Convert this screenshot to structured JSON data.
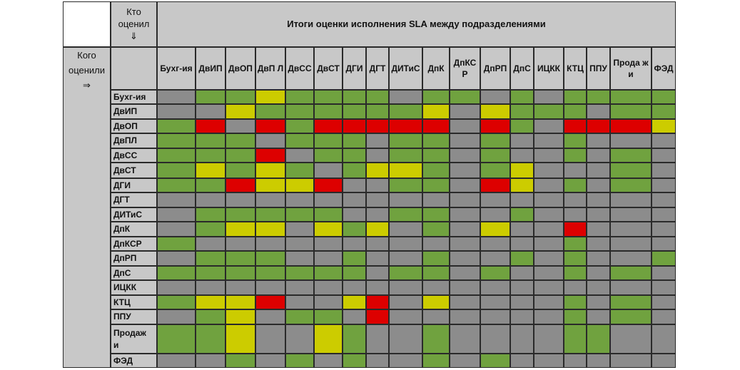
{
  "header": {
    "who_evaluated": "Кто оценил",
    "down_arrow": "⇓",
    "whom_evaluated": "Кого оценили",
    "right_arrow": "⇒",
    "title": "Итоги оценки исполнения SLA между подразделениями"
  },
  "colors": {
    "green": "#70a23f",
    "gray": "#8c8c8c",
    "yellow": "#cccc00",
    "red": "#dd0000",
    "header_bg": "#c8c8c8"
  },
  "chart_data": {
    "type": "heatmap",
    "title": "Итоги оценки исполнения SLA между подразделениями",
    "columns": [
      "Бухг-ия",
      "ДвИП",
      "ДвОП",
      "ДвПЛ",
      "ДвСС",
      "ДвСТ",
      "ДГИ",
      "ДГТ",
      "ДИТиС",
      "ДпК",
      "ДпКСР",
      "ДпРП",
      "ДпС",
      "ИЦКК",
      "КТЦ",
      "ППУ",
      "Продажи",
      "ФЭД"
    ],
    "column_labels": [
      "Бухг-ия",
      "ДвИП",
      "ДвОП",
      "ДвП Л",
      "ДвСС",
      "ДвСТ",
      "ДГИ",
      "ДГТ",
      "ДИТиС",
      "ДпК",
      "ДпКСР",
      "ДпРП",
      "ДпС",
      "ИЦКК",
      "КТЦ",
      "ППУ",
      "Прода жи",
      "ФЭД"
    ],
    "rows": [
      "Бухг-ия",
      "ДвИП",
      "ДвОП",
      "ДвПЛ",
      "ДвСС",
      "ДвСТ",
      "ДГИ",
      "ДГТ",
      "ДИТиС",
      "ДпК",
      "ДпКСР",
      "ДпРП",
      "ДпС",
      "ИЦКК",
      "КТЦ",
      "ППУ",
      "Продажи",
      "ФЭД"
    ],
    "row_labels": [
      "Бухг-ия",
      "ДвИП",
      "ДвОП",
      "ДвПЛ",
      "ДвСС",
      "ДвСТ",
      "ДГИ",
      "ДГТ",
      "ДИТиС",
      "ДпК",
      "ДпКСР",
      "ДпРП",
      "ДпС",
      "ИЦКК",
      "КТЦ",
      "ППУ",
      "Продаж и",
      "ФЭД"
    ],
    "values": [
      [
        "gray",
        "green",
        "green",
        "yellow",
        "green",
        "green",
        "green",
        "green",
        "gray",
        "green",
        "green",
        "gray",
        "green",
        "gray",
        "green",
        "green",
        "green",
        "green"
      ],
      [
        "gray",
        "gray",
        "yellow",
        "green",
        "green",
        "green",
        "green",
        "green",
        "green",
        "yellow",
        "gray",
        "yellow",
        "green",
        "green",
        "green",
        "gray",
        "green",
        "green"
      ],
      [
        "green",
        "red",
        "gray",
        "red",
        "green",
        "red",
        "red",
        "red",
        "red",
        "red",
        "gray",
        "red",
        "green",
        "gray",
        "red",
        "red",
        "red",
        "yellow"
      ],
      [
        "green",
        "green",
        "green",
        "gray",
        "green",
        "green",
        "green",
        "gray",
        "green",
        "green",
        "gray",
        "green",
        "gray",
        "gray",
        "green",
        "gray",
        "gray",
        "gray"
      ],
      [
        "green",
        "green",
        "green",
        "red",
        "gray",
        "green",
        "green",
        "gray",
        "green",
        "green",
        "gray",
        "green",
        "gray",
        "gray",
        "green",
        "gray",
        "green",
        "gray"
      ],
      [
        "green",
        "yellow",
        "green",
        "yellow",
        "green",
        "gray",
        "green",
        "yellow",
        "yellow",
        "green",
        "gray",
        "green",
        "yellow",
        "gray",
        "gray",
        "gray",
        "green",
        "gray"
      ],
      [
        "green",
        "green",
        "red",
        "yellow",
        "yellow",
        "red",
        "gray",
        "gray",
        "green",
        "green",
        "gray",
        "red",
        "yellow",
        "gray",
        "green",
        "gray",
        "green",
        "gray"
      ],
      [
        "gray",
        "gray",
        "gray",
        "gray",
        "gray",
        "gray",
        "gray",
        "gray",
        "gray",
        "gray",
        "gray",
        "gray",
        "gray",
        "gray",
        "gray",
        "gray",
        "gray",
        "gray"
      ],
      [
        "gray",
        "green",
        "green",
        "green",
        "green",
        "green",
        "gray",
        "gray",
        "green",
        "green",
        "gray",
        "gray",
        "green",
        "gray",
        "gray",
        "gray",
        "gray",
        "gray"
      ],
      [
        "gray",
        "green",
        "yellow",
        "yellow",
        "gray",
        "yellow",
        "green",
        "yellow",
        "gray",
        "green",
        "gray",
        "yellow",
        "gray",
        "gray",
        "red",
        "gray",
        "gray",
        "gray"
      ],
      [
        "green",
        "gray",
        "gray",
        "gray",
        "gray",
        "gray",
        "gray",
        "gray",
        "gray",
        "gray",
        "gray",
        "gray",
        "gray",
        "gray",
        "green",
        "gray",
        "gray",
        "gray"
      ],
      [
        "gray",
        "green",
        "green",
        "green",
        "gray",
        "gray",
        "green",
        "gray",
        "gray",
        "green",
        "gray",
        "gray",
        "green",
        "gray",
        "green",
        "gray",
        "gray",
        "green"
      ],
      [
        "green",
        "green",
        "green",
        "green",
        "green",
        "green",
        "green",
        "gray",
        "green",
        "green",
        "gray",
        "green",
        "gray",
        "gray",
        "green",
        "gray",
        "green",
        "gray"
      ],
      [
        "gray",
        "gray",
        "gray",
        "gray",
        "gray",
        "gray",
        "gray",
        "gray",
        "gray",
        "gray",
        "gray",
        "gray",
        "gray",
        "gray",
        "gray",
        "gray",
        "gray",
        "gray"
      ],
      [
        "green",
        "yellow",
        "yellow",
        "red",
        "gray",
        "gray",
        "yellow",
        "red",
        "gray",
        "yellow",
        "gray",
        "gray",
        "gray",
        "gray",
        "green",
        "gray",
        "green",
        "gray"
      ],
      [
        "gray",
        "green",
        "yellow",
        "gray",
        "green",
        "green",
        "gray",
        "red",
        "gray",
        "gray",
        "gray",
        "gray",
        "gray",
        "gray",
        "green",
        "gray",
        "green",
        "gray"
      ],
      [
        "green",
        "green",
        "yellow",
        "gray",
        "gray",
        "yellow",
        "green",
        "gray",
        "gray",
        "green",
        "gray",
        "gray",
        "gray",
        "gray",
        "green",
        "green",
        "gray",
        "gray"
      ],
      [
        "gray",
        "gray",
        "green",
        "gray",
        "green",
        "gray",
        "green",
        "gray",
        "gray",
        "green",
        "gray",
        "green",
        "gray",
        "gray",
        "gray",
        "gray",
        "gray",
        "gray"
      ]
    ]
  }
}
